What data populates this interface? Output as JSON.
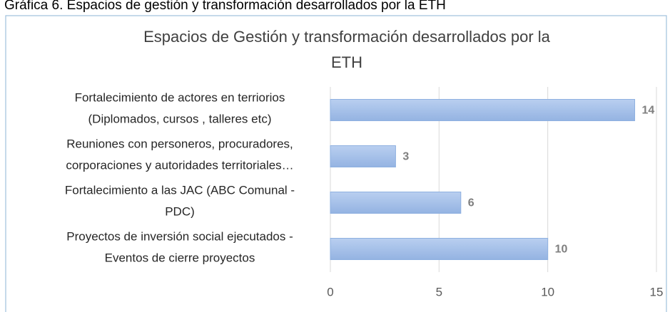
{
  "caption": "Gráfica 6. Espacios de gestión y transformación desarrollados por la ETH",
  "chart_data": {
    "type": "bar",
    "orientation": "horizontal",
    "title": [
      "Espacios de Gestión y transformación desarrollados por la",
      "ETH"
    ],
    "categories": [
      [
        "Fortalecimiento de actores en terriorios",
        "(Diplomados, cursos , talleres etc)"
      ],
      [
        "Reuniones con personeros, procuradores,",
        "corporaciones y autoridades territoriales…"
      ],
      [
        "Fortalecimiento a  las JAC (ABC Comunal -",
        "PDC)"
      ],
      [
        "Proyectos de inversión social ejecutados -",
        "Eventos de cierre proyectos"
      ]
    ],
    "values": [
      14,
      3,
      6,
      10
    ],
    "color": "#a3bfe9",
    "xlim": [
      0,
      15
    ],
    "xticks": [
      0,
      5,
      10,
      15
    ],
    "grid": true
  }
}
